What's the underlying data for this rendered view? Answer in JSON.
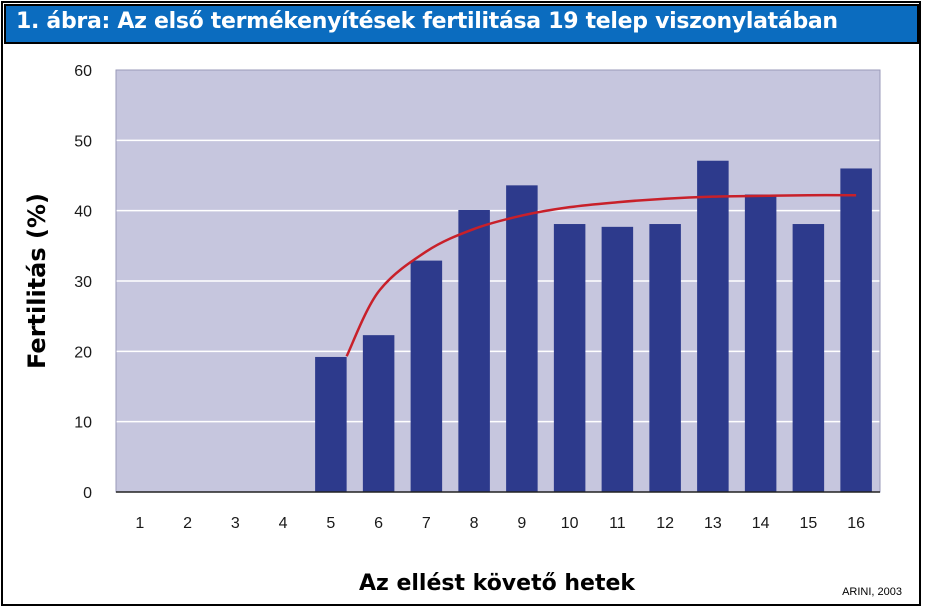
{
  "title": "1. ábra: Az első termékenyítések fertilitása 19 telep viszonylatában",
  "source": "ARINI, 2003",
  "colors": {
    "title_bg": "#0b6cbf",
    "plot_bg": "#c6c6de",
    "bar": "#2d3a8c",
    "trend": "#c8202a",
    "grid": "#ffffff"
  },
  "chart_data": {
    "type": "bar",
    "title": "1. ábra: Az első termékenyítések fertilitása 19 telep viszonylatában",
    "xlabel": "Az ellést követő hetek",
    "ylabel": "Fertilitás (%)",
    "ylim": [
      0,
      60
    ],
    "yticks": [
      "0",
      "10",
      "20",
      "30",
      "40",
      "50",
      "60"
    ],
    "categories": [
      "1",
      "2",
      "3",
      "4",
      "5",
      "6",
      "7",
      "8",
      "9",
      "10",
      "11",
      "12",
      "13",
      "14",
      "15",
      "16"
    ],
    "values": [
      0,
      0,
      0,
      0,
      19.2,
      22.3,
      32.9,
      40.1,
      43.6,
      38.1,
      37.7,
      38.1,
      47.1,
      42.3,
      38.1,
      46.0
    ],
    "trendline": {
      "x": [
        5,
        6,
        7,
        8,
        9,
        10,
        11,
        12,
        13,
        14,
        15,
        16
      ],
      "y": [
        19.3,
        28.5,
        34.2,
        37.4,
        39.3,
        40.5,
        41.2,
        41.7,
        42.0,
        42.1,
        42.2,
        42.2
      ]
    },
    "grid": true,
    "legend": "none"
  }
}
